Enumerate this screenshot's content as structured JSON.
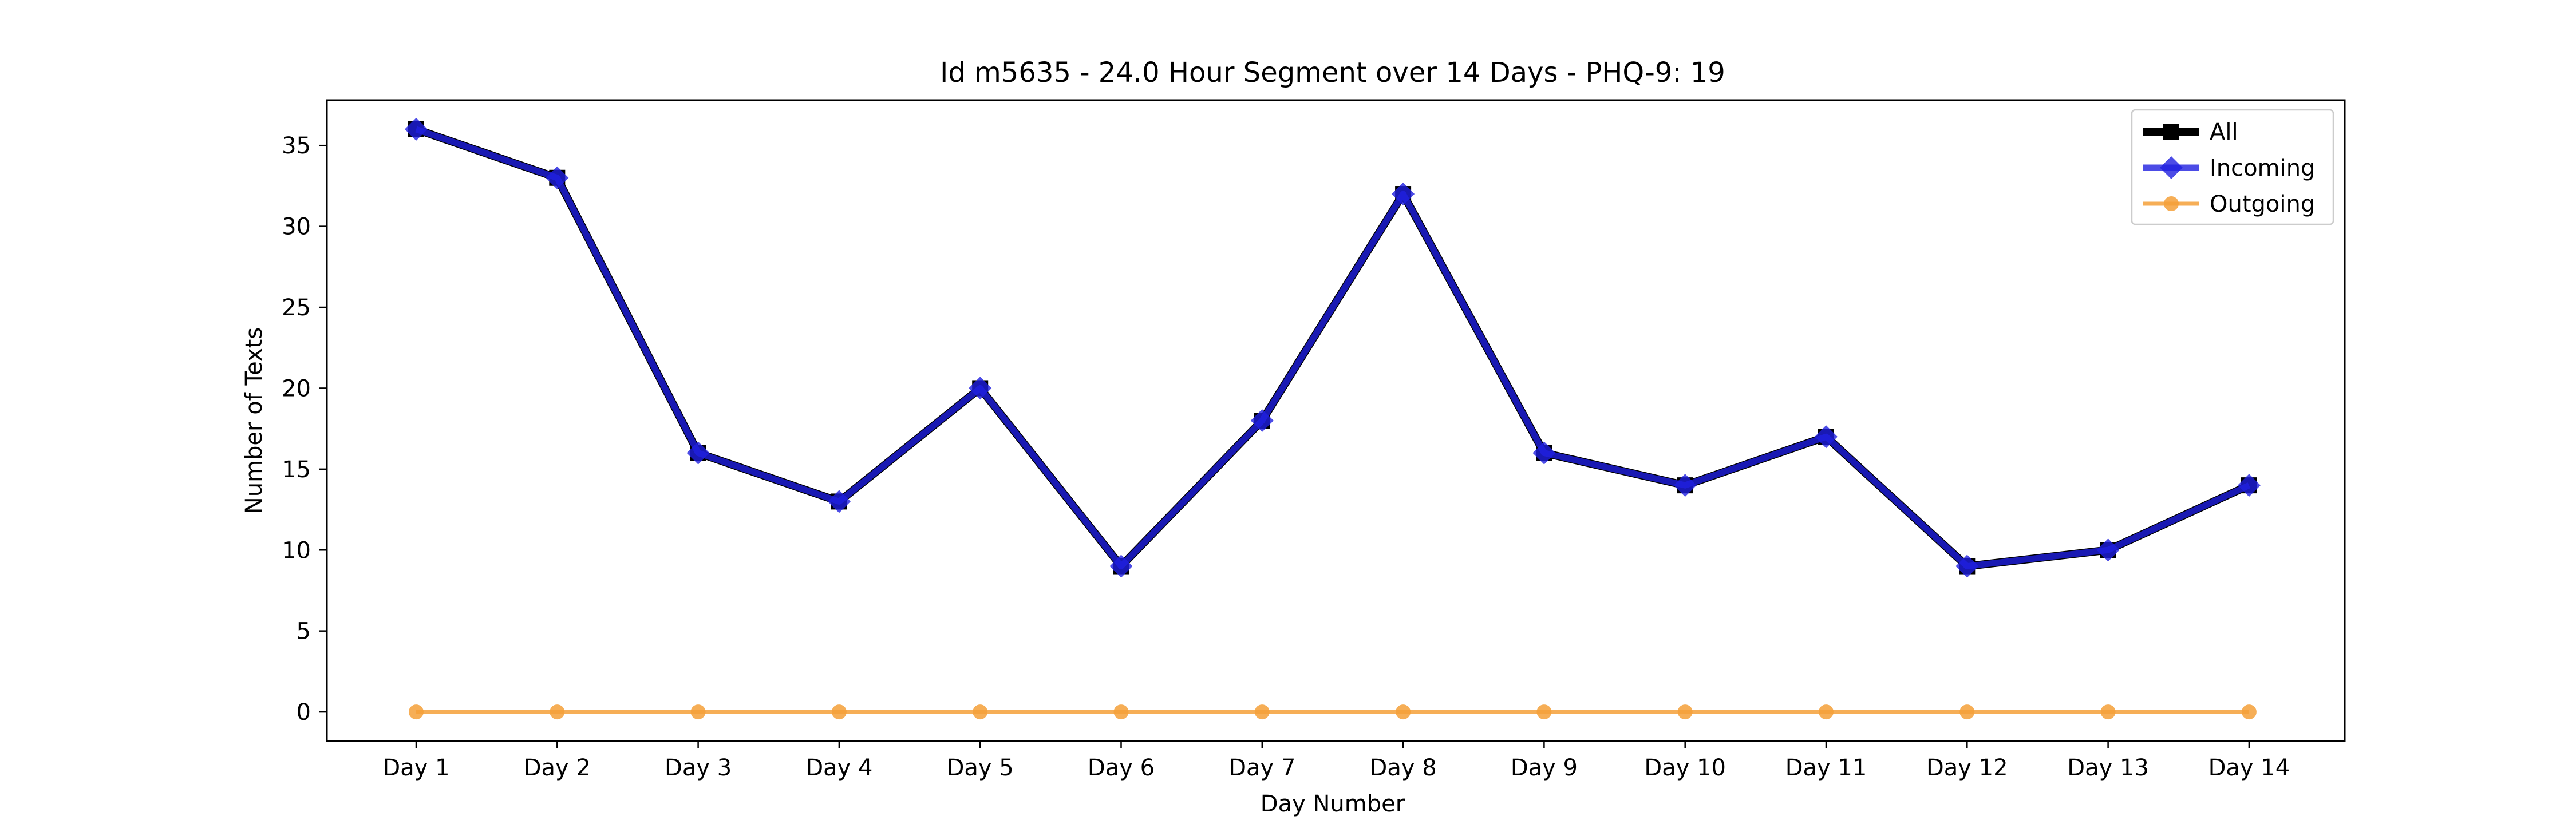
{
  "chart_data": {
    "type": "line",
    "title": "Id m5635 - 24.0 Hour Segment over 14 Days - PHQ-9: 19",
    "xlabel": "Day Number",
    "ylabel": "Number of Texts",
    "categories": [
      "Day 1",
      "Day 2",
      "Day 3",
      "Day 4",
      "Day 5",
      "Day 6",
      "Day 7",
      "Day 8",
      "Day 9",
      "Day 10",
      "Day 11",
      "Day 12",
      "Day 13",
      "Day 14"
    ],
    "ylim": [
      -1.8,
      37.8
    ],
    "yticks": [
      0,
      5,
      10,
      15,
      20,
      25,
      30,
      35
    ],
    "grid": false,
    "legend_position": "top-right",
    "series": [
      {
        "name": "All",
        "color": "#000000",
        "marker": "square",
        "values": [
          36,
          33,
          16,
          13,
          20,
          9,
          18,
          32,
          16,
          14,
          17,
          9,
          10,
          14
        ]
      },
      {
        "name": "Incoming",
        "color": "#1f1fe0",
        "marker": "diamond",
        "values": [
          36,
          33,
          16,
          13,
          20,
          9,
          18,
          32,
          16,
          14,
          17,
          9,
          10,
          14
        ]
      },
      {
        "name": "Outgoing",
        "color": "#f5a038",
        "marker": "circle",
        "values": [
          0,
          0,
          0,
          0,
          0,
          0,
          0,
          0,
          0,
          0,
          0,
          0,
          0,
          0
        ]
      }
    ]
  }
}
